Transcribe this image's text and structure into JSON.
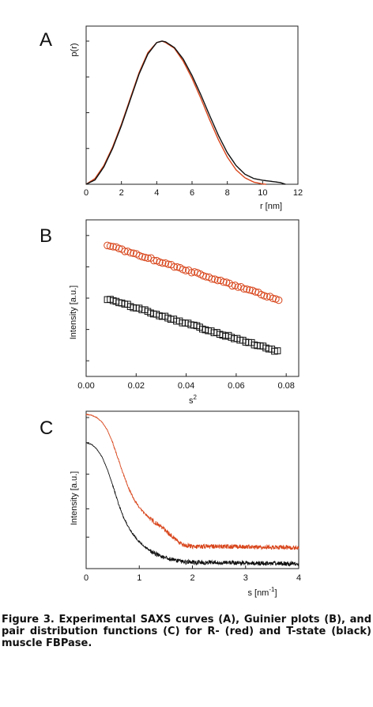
{
  "figure": {
    "caption": "Figure 3. Experimental SAXS curves (A), Guinier plots (B), and pair distribution functions (C) for R- (red) and T-state (black) muscle FBPase."
  },
  "colors": {
    "red": "#d8451b",
    "black": "#111111",
    "axis": "#222222"
  },
  "chart_data": [
    {
      "panel": "A",
      "type": "line",
      "xlabel": "r [nm]",
      "ylabel": "p(r)",
      "xlim": [
        0,
        12
      ],
      "ylim": [
        0,
        1
      ],
      "xticks": [
        0,
        2,
        4,
        6,
        8,
        10,
        12
      ],
      "yticks_labeled": false,
      "grid": false,
      "series": [
        {
          "color": "red",
          "x": [
            0,
            0.5,
            1,
            1.5,
            2,
            2.5,
            3,
            3.5,
            4,
            4.3,
            4.5,
            5,
            5.5,
            6,
            6.5,
            7,
            7.5,
            8,
            8.5,
            9,
            9.5,
            10,
            10.2
          ],
          "y": [
            0,
            0.04,
            0.13,
            0.26,
            0.42,
            0.6,
            0.78,
            0.92,
            0.99,
            1.0,
            0.99,
            0.95,
            0.86,
            0.74,
            0.6,
            0.45,
            0.31,
            0.19,
            0.1,
            0.045,
            0.015,
            0.002,
            0
          ]
        },
        {
          "color": "black",
          "x": [
            0,
            0.5,
            1,
            1.5,
            2,
            2.5,
            3,
            3.5,
            4,
            4.3,
            4.5,
            5,
            5.5,
            6,
            6.5,
            7,
            7.5,
            8,
            8.5,
            9,
            9.5,
            10,
            10.5,
            11,
            11.3
          ],
          "y": [
            0,
            0.03,
            0.12,
            0.25,
            0.41,
            0.59,
            0.77,
            0.91,
            0.99,
            1.0,
            0.995,
            0.955,
            0.875,
            0.76,
            0.625,
            0.48,
            0.34,
            0.22,
            0.13,
            0.07,
            0.04,
            0.028,
            0.02,
            0.012,
            0
          ]
        }
      ]
    },
    {
      "panel": "B",
      "type": "scatter",
      "xlabel": "s²",
      "ylabel": "Intensity [a.u.]",
      "xlim": [
        0,
        0.085
      ],
      "ylim": [
        0,
        1
      ],
      "xticks": [
        0.0,
        0.02,
        0.04,
        0.06,
        0.08
      ],
      "xtick_labels": [
        "0.00",
        "0.02",
        "0.04",
        "0.06",
        "0.08"
      ],
      "yticks_labeled": false,
      "grid": false,
      "series": [
        {
          "color": "red",
          "marker": "circle",
          "x_start": 0.0085,
          "x_end": 0.077,
          "y_start": 0.84,
          "y_end": 0.49,
          "n_points": 60
        },
        {
          "color": "black",
          "marker": "square",
          "x_start": 0.0085,
          "x_end": 0.0765,
          "y_start": 0.495,
          "y_end": 0.16,
          "n_points": 60
        }
      ]
    },
    {
      "panel": "C",
      "type": "line",
      "xlabel": "s [nm⁻¹]",
      "ylabel": "Intensity [a.u.]",
      "xlim": [
        0,
        4
      ],
      "ylim": [
        0,
        1
      ],
      "xticks": [
        0,
        1,
        2,
        3,
        4
      ],
      "yticks_labeled": false,
      "y_scale": "log",
      "grid": false,
      "series": [
        {
          "color": "red",
          "x": [
            0,
            0.1,
            0.2,
            0.3,
            0.4,
            0.5,
            0.6,
            0.7,
            0.8,
            0.9,
            1.0,
            1.1,
            1.2,
            1.3,
            1.4,
            1.5,
            1.6,
            1.7,
            1.8,
            1.9,
            2.0,
            2.5,
            3.0,
            3.5,
            4.0
          ],
          "y": [
            0.98,
            0.975,
            0.96,
            0.93,
            0.88,
            0.8,
            0.7,
            0.6,
            0.51,
            0.44,
            0.39,
            0.35,
            0.32,
            0.29,
            0.27,
            0.24,
            0.21,
            0.18,
            0.155,
            0.145,
            0.14,
            0.14,
            0.138,
            0.136,
            0.133
          ]
        },
        {
          "color": "black",
          "x": [
            0,
            0.1,
            0.2,
            0.3,
            0.4,
            0.5,
            0.6,
            0.7,
            0.8,
            0.9,
            1.0,
            1.1,
            1.2,
            1.3,
            1.4,
            1.5,
            1.6,
            1.7,
            1.8,
            1.9,
            2.0,
            2.5,
            3.0,
            3.5,
            4.0
          ],
          "y": [
            0.8,
            0.79,
            0.76,
            0.71,
            0.63,
            0.53,
            0.42,
            0.33,
            0.26,
            0.21,
            0.17,
            0.14,
            0.115,
            0.095,
            0.08,
            0.068,
            0.058,
            0.05,
            0.045,
            0.042,
            0.04,
            0.037,
            0.035,
            0.033,
            0.03
          ]
        }
      ]
    }
  ]
}
